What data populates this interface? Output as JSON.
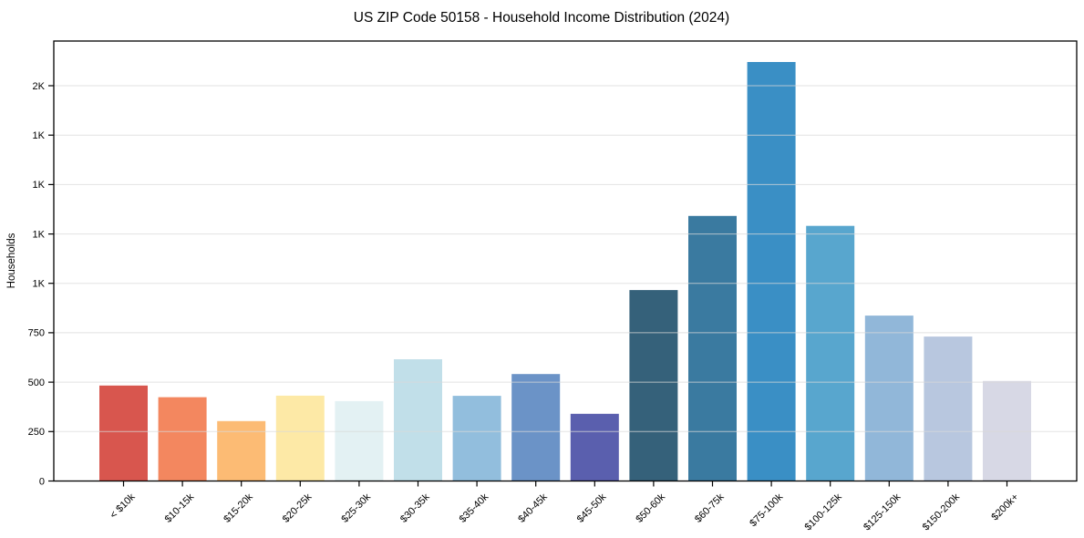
{
  "page": {
    "background": "#ffffff"
  },
  "chart_data": {
    "type": "bar",
    "title": "US ZIP Code 50158 - Household Income Distribution (2024)",
    "xlabel": "",
    "ylabel": "Households",
    "categories": [
      "< $10k",
      "$10-15k",
      "$15-20k",
      "$20-25k",
      "$25-30k",
      "$30-35k",
      "$35-40k",
      "$40-45k",
      "$45-50k",
      "$50-60k",
      "$60-75k",
      "$75-100k",
      "$100-125k",
      "$125-150k",
      "$150-200k",
      "$200k+"
    ],
    "values": [
      483,
      424,
      303,
      432,
      404,
      616,
      431,
      541,
      340,
      966,
      1341,
      2120,
      1291,
      837,
      731,
      506
    ],
    "bar_colors": [
      "#d8564e",
      "#f3875f",
      "#fcbb74",
      "#fde9a6",
      "#e3f1f3",
      "#c1dfe9",
      "#92bedd",
      "#6b93c7",
      "#5a5fae",
      "#35617a",
      "#3a7aa0",
      "#3a8fc5",
      "#58a6ce",
      "#91b7d9",
      "#b8c7df",
      "#d7d8e5"
    ],
    "ylim": [
      0,
      2226
    ],
    "yticks": [
      {
        "value": 0,
        "label": "0"
      },
      {
        "value": 250,
        "label": "250"
      },
      {
        "value": 500,
        "label": "500"
      },
      {
        "value": 750,
        "label": "750"
      },
      {
        "value": 1000,
        "label": "1K"
      },
      {
        "value": 1250,
        "label": "1K"
      },
      {
        "value": 1500,
        "label": "1K"
      },
      {
        "value": 1750,
        "label": "1K"
      },
      {
        "value": 2000,
        "label": "2K"
      }
    ],
    "grid": "horizontal",
    "gridline_color": "#d9d9d9",
    "spine_color": "#000000",
    "tick_color": "#000000",
    "x_tick_rotation": 45,
    "legend": "none"
  }
}
